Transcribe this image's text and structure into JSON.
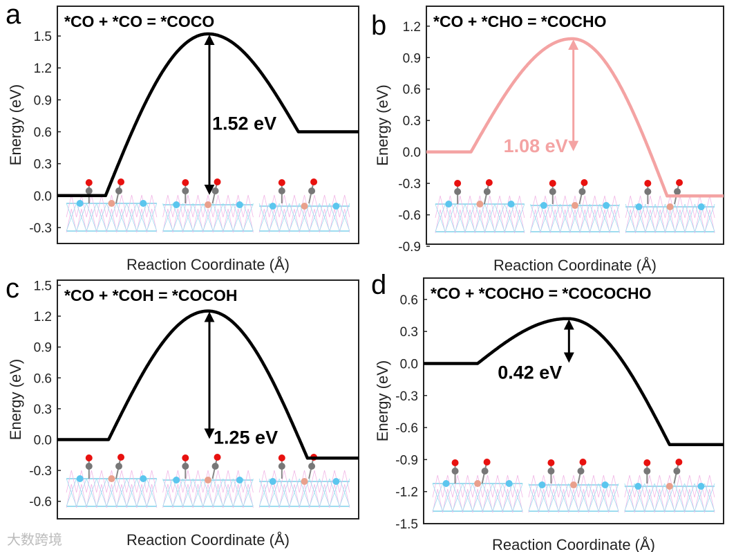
{
  "watermark": "大数跨境",
  "chart_data": [
    {
      "type": "line",
      "panel_label": "a",
      "title": "*CO + *CO = *COCO",
      "xlabel": "Reaction Coordinate (Å)",
      "ylabel": "Energy (eV)",
      "ylim": [
        -0.45,
        1.78
      ],
      "yticks": [
        "1.5",
        "1.2",
        "0.9",
        "0.6",
        "0.3",
        "0.0",
        "-0.3"
      ],
      "ytick_values": [
        1.5,
        1.2,
        0.9,
        0.6,
        0.3,
        0.0,
        -0.3
      ],
      "initial_energy": 0.0,
      "ts_energy": 1.52,
      "final_energy": 0.6,
      "barrier_label": "1.52 eV",
      "color": "#000000",
      "grid": false
    },
    {
      "type": "line",
      "panel_label": "b",
      "title": "*CO + *CHO = *COCHO",
      "xlabel": "Reaction Coordinate (Å)",
      "ylabel": "Energy (eV)",
      "ylim": [
        -0.88,
        1.39
      ],
      "yticks": [
        "1.2",
        "0.9",
        "0.6",
        "0.3",
        "0.0",
        "-0.3",
        "-0.6",
        "-0.9"
      ],
      "ytick_values": [
        1.2,
        0.9,
        0.6,
        0.3,
        0.0,
        -0.3,
        -0.6,
        -0.9
      ],
      "initial_energy": 0.0,
      "ts_energy": 1.08,
      "final_energy": -0.42,
      "barrier_label": "1.08 eV",
      "color": "#f4a3a3",
      "grid": false
    },
    {
      "type": "line",
      "panel_label": "c",
      "title": "*CO + *COH = *COCOH",
      "xlabel": "Reaction Coordinate (Å)",
      "ylabel": "Energy (eV)",
      "ylim": [
        -0.77,
        1.55
      ],
      "yticks": [
        "1.5",
        "1.2",
        "0.9",
        "0.6",
        "0.3",
        "0.0",
        "-0.3",
        "-0.6"
      ],
      "ytick_values": [
        1.5,
        1.2,
        0.9,
        0.6,
        0.3,
        0.0,
        -0.3,
        -0.6
      ],
      "initial_energy": 0.0,
      "ts_energy": 1.25,
      "final_energy": -0.18,
      "barrier_label": "1.25 eV",
      "color": "#000000",
      "grid": false
    },
    {
      "type": "line",
      "panel_label": "d",
      "title": "*CO + *COCHO = *COCOCHO",
      "xlabel": "Reaction Coordinate (Å)",
      "ylabel": "Energy (eV)",
      "ylim": [
        -1.5,
        0.8
      ],
      "yticks": [
        "0.6",
        "0.3",
        "0.0",
        "-0.3",
        "-0.6",
        "-0.9",
        "-1.2",
        "-1.5"
      ],
      "ytick_values": [
        0.6,
        0.3,
        0.0,
        -0.3,
        -0.6,
        -0.9,
        -1.2,
        -1.5
      ],
      "initial_energy": 0.0,
      "ts_energy": 0.42,
      "final_energy": -0.76,
      "barrier_label": "0.42 eV",
      "color": "#000000",
      "grid": false
    }
  ]
}
